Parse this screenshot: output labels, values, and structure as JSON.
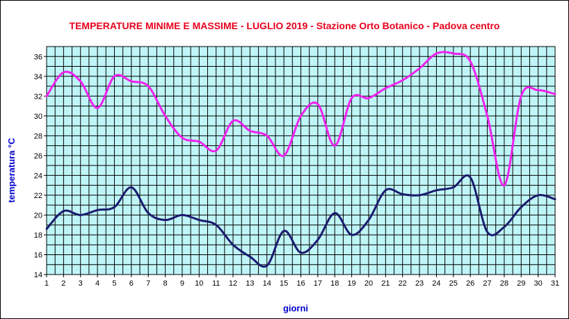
{
  "chart_data": {
    "type": "line",
    "title": "TEMPERATURE MINIME E MASSIME  - LUGLIO 2019 - Stazione Orto Botanico - Padova centro",
    "xlabel": "giorni",
    "ylabel": "temperatura °C",
    "x": [
      1,
      2,
      3,
      4,
      5,
      6,
      7,
      8,
      9,
      10,
      11,
      12,
      13,
      14,
      15,
      16,
      17,
      18,
      19,
      20,
      21,
      22,
      23,
      24,
      25,
      26,
      27,
      28,
      29,
      30,
      31
    ],
    "xlim": [
      1,
      31
    ],
    "ylim": [
      14,
      37
    ],
    "yticks": [
      14,
      16,
      18,
      20,
      22,
      24,
      26,
      28,
      30,
      32,
      34,
      36
    ],
    "grid": true,
    "legend": "none",
    "colors": {
      "plot_background": "#bff5f7",
      "grid": "#000000",
      "title": "#e8001c",
      "axis_label": "#0000cc",
      "tmax_line": "#f020f0",
      "tmin_line": "#1a1a6e"
    },
    "series": [
      {
        "values": [
          32.0,
          34.4,
          33.5,
          30.8,
          34.0,
          33.5,
          33.0,
          30.0,
          27.8,
          27.4,
          26.5,
          29.5,
          28.5,
          28.0,
          26.0,
          30.0,
          31.2,
          27.0,
          31.8,
          31.8,
          32.8,
          33.6,
          34.8,
          36.3,
          36.3,
          35.5,
          30.0,
          23.0,
          32.0,
          32.6,
          32.2
        ]
      },
      {
        "values": [
          18.6,
          20.4,
          20.0,
          20.5,
          20.8,
          22.8,
          20.2,
          19.5,
          20.0,
          19.5,
          19.0,
          17.0,
          15.8,
          14.9,
          18.4,
          16.2,
          17.5,
          20.2,
          18.0,
          19.5,
          22.5,
          22.1,
          22.0,
          22.5,
          22.8,
          23.8,
          18.3,
          18.8,
          20.8,
          22.0,
          21.6
        ]
      }
    ]
  }
}
